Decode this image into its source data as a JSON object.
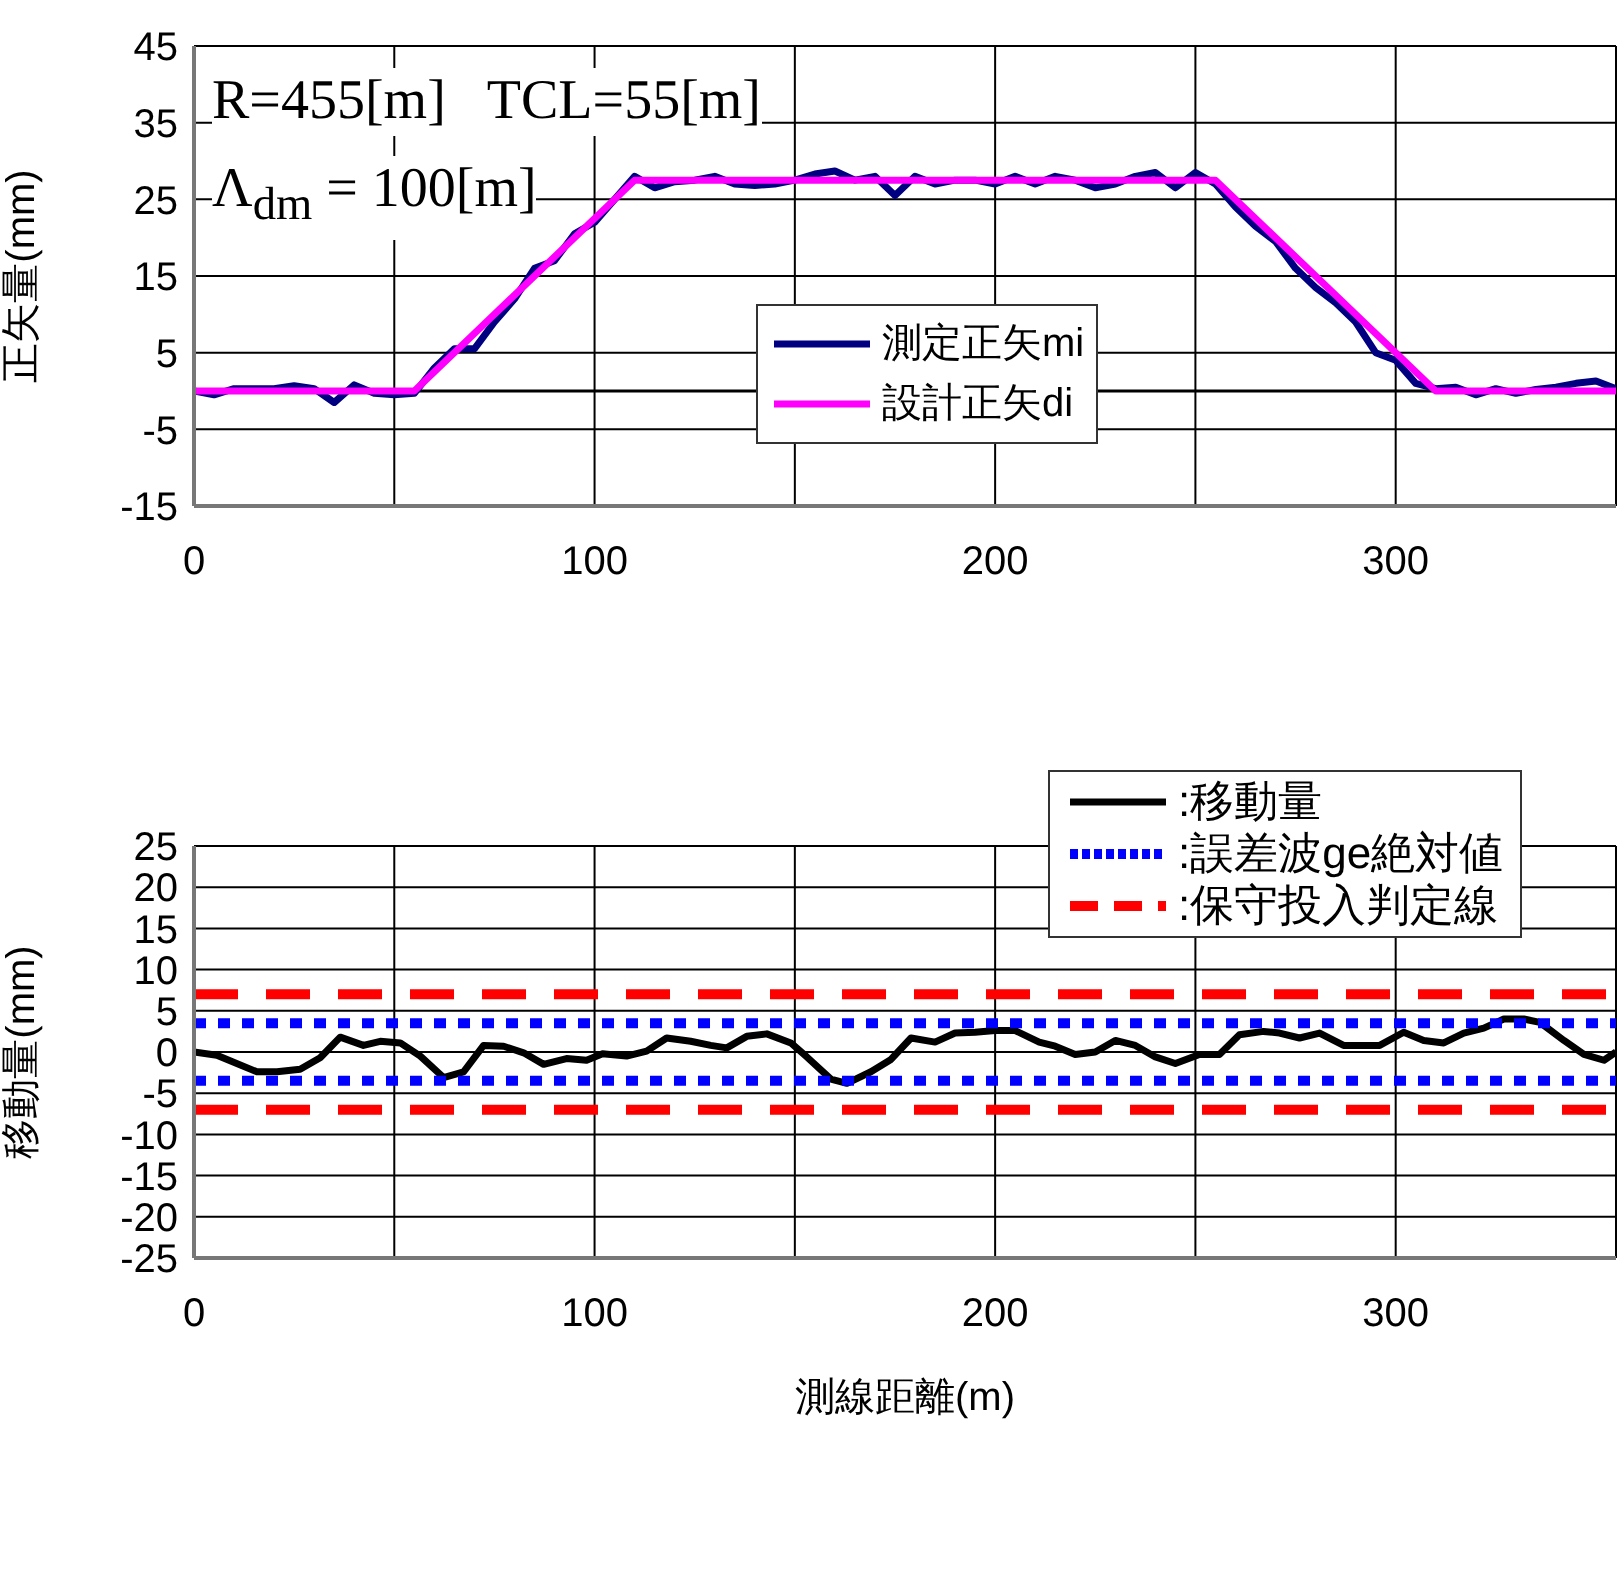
{
  "chart_data": [
    {
      "type": "line",
      "ylabel": "正矢量(mm)",
      "xlim": [
        0,
        355
      ],
      "xticks": [
        0,
        {
          "value": 50,
          "label": null
        },
        100,
        {
          "value": 150,
          "label": null
        },
        200,
        {
          "value": 250,
          "label": null
        },
        300
      ],
      "ylim": [
        -15,
        45
      ],
      "yticks": [
        -15,
        -5,
        5,
        15,
        25,
        35,
        45
      ],
      "grid": true,
      "legend": "center",
      "marker": "none",
      "annotations": [
        "R=455[m]   TCL=55[m]",
        "Λ$_{dm}$ = 100[m]"
      ],
      "ref_lines": [
        {
          "axis": "y",
          "value": 0,
          "color": "#000000"
        }
      ],
      "series": [
        {
          "name": "測定正矢mi",
          "color": "#000080",
          "x": [
            0,
            5,
            10,
            15,
            20,
            25,
            30,
            35,
            40,
            45,
            50,
            55,
            60,
            65,
            70,
            75,
            80,
            85,
            90,
            95,
            100,
            105,
            110,
            115,
            120,
            125,
            130,
            135,
            140,
            145,
            150,
            155,
            160,
            165,
            170,
            175,
            180,
            185,
            190,
            195,
            200,
            205,
            210,
            215,
            220,
            225,
            230,
            235,
            240,
            245,
            250,
            255,
            260,
            265,
            270,
            275,
            280,
            285,
            290,
            295,
            300,
            305,
            310,
            315,
            320,
            325,
            330,
            335,
            340,
            345,
            350,
            355
          ],
          "values": [
            0,
            -0.5,
            0.3,
            0.3,
            0.3,
            0.7,
            0.3,
            -1.5,
            0.8,
            -0.3,
            -0.5,
            -0.3,
            3,
            5.5,
            5.5,
            9,
            12,
            16,
            17,
            20.5,
            22,
            25,
            28,
            26.5,
            27.3,
            27.5,
            28,
            27,
            26.8,
            27,
            27.5,
            28.3,
            28.7,
            27.5,
            28,
            25.5,
            28,
            27,
            27.5,
            27.5,
            27,
            28,
            27,
            28,
            27.5,
            26.5,
            27,
            28,
            28.5,
            26.5,
            28.5,
            27,
            24,
            21.5,
            19.5,
            16,
            13.5,
            11.5,
            9,
            5,
            4,
            1,
            0.3,
            0.5,
            -0.5,
            0.3,
            -0.3,
            0.2,
            0.5,
            1,
            1.3,
            0.3
          ]
        },
        {
          "name": "設計正矢di",
          "color": "#ff00ff",
          "x": [
            0,
            55,
            110,
            255,
            310,
            355
          ],
          "values": [
            0,
            0,
            27.5,
            27.5,
            0,
            0
          ]
        }
      ]
    },
    {
      "type": "line",
      "xlabel": "測線距離(m)",
      "ylabel": "移動量(mm)",
      "xlim": [
        0,
        355
      ],
      "xticks": [
        0,
        {
          "value": 50,
          "label": null
        },
        100,
        {
          "value": 150,
          "label": null
        },
        200,
        {
          "value": 250,
          "label": null
        },
        300
      ],
      "ylim": [
        -25,
        25
      ],
      "yticks": [
        -25,
        -20,
        -15,
        -10,
        -5,
        0,
        5,
        10,
        15,
        20,
        25
      ],
      "grid": true,
      "legend": "top right",
      "marker": "none",
      "series": [
        {
          "name": ":移動量",
          "color": "#000000",
          "line_style": "solid",
          "x": [
            0,
            5.7,
            15.7,
            20.7,
            26.5,
            31.5,
            36.5,
            42.3,
            46.5,
            51.5,
            56.5,
            62.3,
            67.3,
            72.3,
            77.3,
            82.3,
            87.3,
            93,
            98,
            102,
            108,
            113,
            118,
            124,
            129,
            133,
            138,
            143,
            149,
            153,
            159,
            163,
            169,
            174,
            179,
            185,
            190,
            195,
            200,
            205,
            211,
            215,
            220,
            225,
            230,
            235,
            240,
            245,
            251,
            256,
            261,
            267,
            271,
            276,
            281,
            287,
            292,
            296,
            302,
            307,
            312,
            317,
            322,
            327,
            332,
            336,
            342,
            347,
            352,
            355
          ],
          "values": [
            0,
            -0.4,
            -2.4,
            -2.4,
            -2.1,
            -0.7,
            1.8,
            0.8,
            1.3,
            1.1,
            -0.5,
            -3.1,
            -2.4,
            0.8,
            0.7,
            -0.1,
            -1.5,
            -0.8,
            -1,
            -0.2,
            -0.5,
            0.1,
            1.7,
            1.3,
            0.8,
            0.5,
            1.9,
            2.2,
            1.1,
            -0.6,
            -3.3,
            -3.8,
            -2.4,
            -0.9,
            1.7,
            1.2,
            2.3,
            2.4,
            2.6,
            2.6,
            1.2,
            0.7,
            -0.3,
            0,
            1.4,
            0.8,
            -0.6,
            -1.4,
            -0.3,
            -0.3,
            2.1,
            2.5,
            2.3,
            1.7,
            2.3,
            0.8,
            0.8,
            0.8,
            2.4,
            1.4,
            1.1,
            2.3,
            2.9,
            4,
            4,
            3.6,
            1.4,
            -0.3,
            -1,
            0
          ]
        },
        {
          "name": ":誤差波ge絶対値",
          "color": "#0000ff",
          "line_style": "dotted",
          "x": [
            0,
            355
          ],
          "values": [
            3.5,
            3.5
          ]
        },
        {
          "color": "#0000ff",
          "line_style": "dotted",
          "x": [
            0,
            355
          ],
          "values": [
            -3.5,
            -3.5
          ]
        },
        {
          "name": ":保守投入判定線",
          "color": "#ff0000",
          "line_style": "dashed",
          "x": [
            0,
            355
          ],
          "values": [
            7,
            7
          ]
        },
        {
          "color": "#ff0000",
          "line_style": "dashed",
          "x": [
            0,
            355
          ],
          "values": [
            -7,
            -7
          ]
        }
      ]
    }
  ]
}
